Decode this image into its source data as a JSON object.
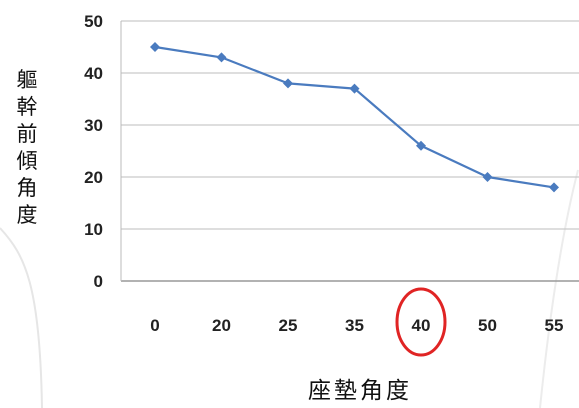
{
  "chart_data": {
    "type": "line",
    "xlabel": "座墊角度",
    "ylabel": "軀幹前傾角度",
    "categories": [
      "0",
      "20",
      "25",
      "35",
      "40",
      "50",
      "55"
    ],
    "series": [
      {
        "values": [
          45,
          43,
          38,
          37,
          26,
          20,
          18
        ],
        "color": "#4a7bbf"
      }
    ],
    "ylim": [
      0,
      50
    ],
    "yticks": [
      0,
      10,
      20,
      30,
      40,
      50
    ],
    "grid": true,
    "highlight": {
      "category": "40",
      "shape": "circle",
      "color": "#e02424"
    }
  }
}
